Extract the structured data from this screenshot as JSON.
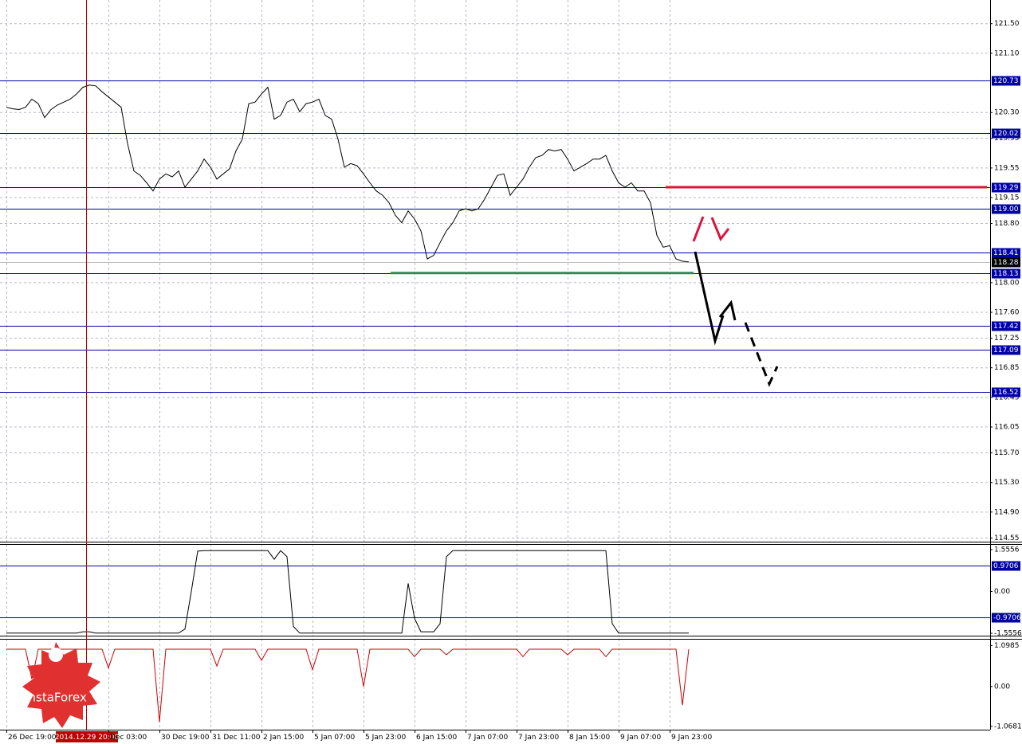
{
  "watermark": "InstaForex",
  "chart_data": [
    {
      "type": "line",
      "categories": [
        "26 Dec 19:00",
        null,
        null,
        null,
        null,
        null,
        null,
        null,
        null,
        null,
        null,
        null,
        null,
        null,
        null,
        null,
        "Dec 03:00",
        null,
        null,
        null,
        null,
        null,
        null,
        null,
        "30 Dec 19:00",
        null,
        null,
        null,
        null,
        null,
        null,
        null,
        "31 Dec 11:00",
        null,
        null,
        null,
        null,
        null,
        null,
        null,
        "2 Jan 15:00",
        null,
        null,
        null,
        null,
        null,
        null,
        null,
        "5 Jan 07:00",
        null,
        null,
        null,
        null,
        null,
        null,
        null,
        "5 Jan 23:00",
        null,
        null,
        null,
        null,
        null,
        null,
        null,
        "6 Jan 15:00",
        null,
        null,
        null,
        null,
        null,
        null,
        null,
        "7 Jan 07:00",
        null,
        null,
        null,
        null,
        null,
        null,
        null,
        "7 Jan 23:00",
        null,
        null,
        null,
        null,
        null,
        null,
        null,
        "8 Jan 15:00",
        null,
        null,
        null,
        null,
        null,
        null,
        null,
        "9 Jan 07:00",
        null,
        null,
        null,
        null,
        null,
        null,
        null,
        "9 Jan 23:00",
        null,
        null,
        null
      ],
      "values": [
        120.37,
        120.35,
        120.34,
        120.37,
        120.48,
        120.42,
        120.23,
        120.34,
        120.4,
        120.44,
        120.48,
        120.55,
        120.64,
        120.67,
        120.66,
        120.58,
        120.51,
        120.44,
        120.37,
        119.88,
        119.51,
        119.45,
        119.35,
        119.24,
        119.4,
        119.47,
        119.43,
        119.51,
        119.29,
        119.4,
        119.51,
        119.67,
        119.56,
        119.4,
        119.47,
        119.54,
        119.78,
        119.94,
        120.42,
        120.44,
        120.55,
        120.64,
        120.21,
        120.26,
        120.44,
        120.48,
        120.31,
        120.42,
        120.44,
        120.48,
        120.26,
        120.21,
        119.94,
        119.56,
        119.61,
        119.58,
        119.47,
        119.35,
        119.24,
        119.18,
        119.08,
        118.91,
        118.81,
        118.97,
        118.86,
        118.7,
        118.32,
        118.37,
        118.54,
        118.7,
        118.81,
        118.97,
        119,
        118.97,
        119,
        119.13,
        119.29,
        119.45,
        119.47,
        119.18,
        119.29,
        119.4,
        119.56,
        119.69,
        119.72,
        119.8,
        119.78,
        119.8,
        119.67,
        119.51,
        119.56,
        119.61,
        119.67,
        119.67,
        119.72,
        119.51,
        119.35,
        119.29,
        119.35,
        119.24,
        119.24,
        119.08,
        118.64,
        118.48,
        118.5,
        118.32,
        118.29,
        118.28
      ],
      "color": "#000000",
      "ylim": [
        114.5,
        121.82
      ],
      "yticks": [
        {
          "value": 121.5,
          "label": "121.50"
        },
        {
          "value": 121.1,
          "label": "121.10"
        },
        {
          "value": 120.3,
          "label": "120.30"
        },
        119.95,
        119.55,
        119.15,
        {
          "value": 118.8,
          "label": "118.80"
        },
        {
          "value": 118,
          "label": "118.00"
        },
        {
          "value": 117.6,
          "label": "117.60"
        },
        117.25,
        116.85,
        116.45,
        116.05,
        {
          "value": 115.7,
          "label": "115.70"
        },
        {
          "value": 115.3,
          "label": "115.30"
        },
        {
          "value": 114.9,
          "label": "114.90"
        },
        114.55
      ],
      "levels": [
        120.73,
        120.02,
        119.29,
        {
          "value": 119,
          "label": "119.00"
        },
        118.41,
        118.13,
        117.42,
        117.09,
        116.52
      ],
      "level_color": "#0000a8",
      "current_price": 118.28,
      "resistance_level": 119.29,
      "resistance_color": "#dc143c",
      "support_level": 118.13,
      "support_color": "#2e8b57",
      "cursor_label": "2014.12.29 20:00",
      "grid": true
    },
    {
      "type": "line",
      "values": [
        -1.55,
        -1.55,
        -1.55,
        -1.55,
        -1.55,
        -1.55,
        -1.55,
        -1.55,
        -1.55,
        -1.55,
        -1.55,
        -1.55,
        -1.5,
        -1.5,
        -1.55,
        -1.55,
        -1.55,
        -1.55,
        -1.55,
        -1.55,
        -1.55,
        -1.55,
        -1.55,
        -1.55,
        -1.55,
        -1.55,
        -1.55,
        -1.55,
        -1.4,
        0,
        1.5,
        1.52,
        1.52,
        1.52,
        1.52,
        1.52,
        1.52,
        1.52,
        1.52,
        1.52,
        1.52,
        1.52,
        1.2,
        1.52,
        1.3,
        -1.3,
        -1.55,
        -1.55,
        -1.55,
        -1.55,
        -1.55,
        -1.55,
        -1.55,
        -1.55,
        -1.55,
        -1.55,
        -1.55,
        -1.55,
        -1.55,
        -1.55,
        -1.55,
        -1.55,
        -1.55,
        0.3,
        -1,
        -1.5,
        -1.5,
        -1.5,
        -1.2,
        1.3,
        1.52,
        1.52,
        1.52,
        1.52,
        1.52,
        1.52,
        1.52,
        1.52,
        1.52,
        1.52,
        1.52,
        1.52,
        1.52,
        1.52,
        1.52,
        1.52,
        1.52,
        1.52,
        1.52,
        1.52,
        1.52,
        1.52,
        1.52,
        1.52,
        1.52,
        -1.2,
        -1.55,
        -1.55,
        -1.55,
        -1.55,
        -1.55,
        -1.55,
        -1.55,
        -1.55,
        -1.55,
        -1.55,
        -1.55,
        -1.55
      ],
      "color": "#000000",
      "ylim": [
        -1.645,
        1.765
      ],
      "yticks": [
        1.5556,
        {
          "value": 0,
          "label": "0.00"
        },
        -1.5556
      ],
      "levels": [
        0.9706,
        -0.9706
      ],
      "level_color": "#0000a8"
    },
    {
      "type": "line",
      "values": [
        1,
        1,
        1,
        1,
        0.2,
        1,
        1,
        1,
        1,
        1,
        1,
        1,
        1,
        1,
        1,
        1,
        0.5,
        1,
        1,
        1,
        1,
        1,
        1,
        1,
        -0.95,
        1,
        1,
        1,
        1,
        1,
        1,
        1,
        1,
        0.55,
        1,
        1,
        1,
        1,
        1,
        1,
        0.7,
        1,
        1,
        1,
        1,
        1,
        1,
        1,
        0.45,
        1,
        1,
        1,
        1,
        1,
        1,
        1,
        0,
        1,
        1,
        1,
        1,
        1,
        1,
        1,
        0.8,
        1,
        1,
        1,
        1,
        0.85,
        1,
        1,
        1,
        1,
        1,
        1,
        1,
        1,
        1,
        1,
        1,
        0.8,
        1,
        1,
        1,
        1,
        1,
        1,
        0.85,
        1,
        1,
        1,
        1,
        1,
        0.8,
        1,
        1,
        1,
        1,
        1,
        1,
        1,
        1,
        1,
        1,
        1,
        -0.5,
        1
      ],
      "color": "#d00000",
      "ylim": [
        -1.158,
        1.278
      ],
      "yticks": [
        1.0985,
        {
          "value": 0,
          "label": "0.00"
        },
        -1.0681
      ]
    }
  ]
}
